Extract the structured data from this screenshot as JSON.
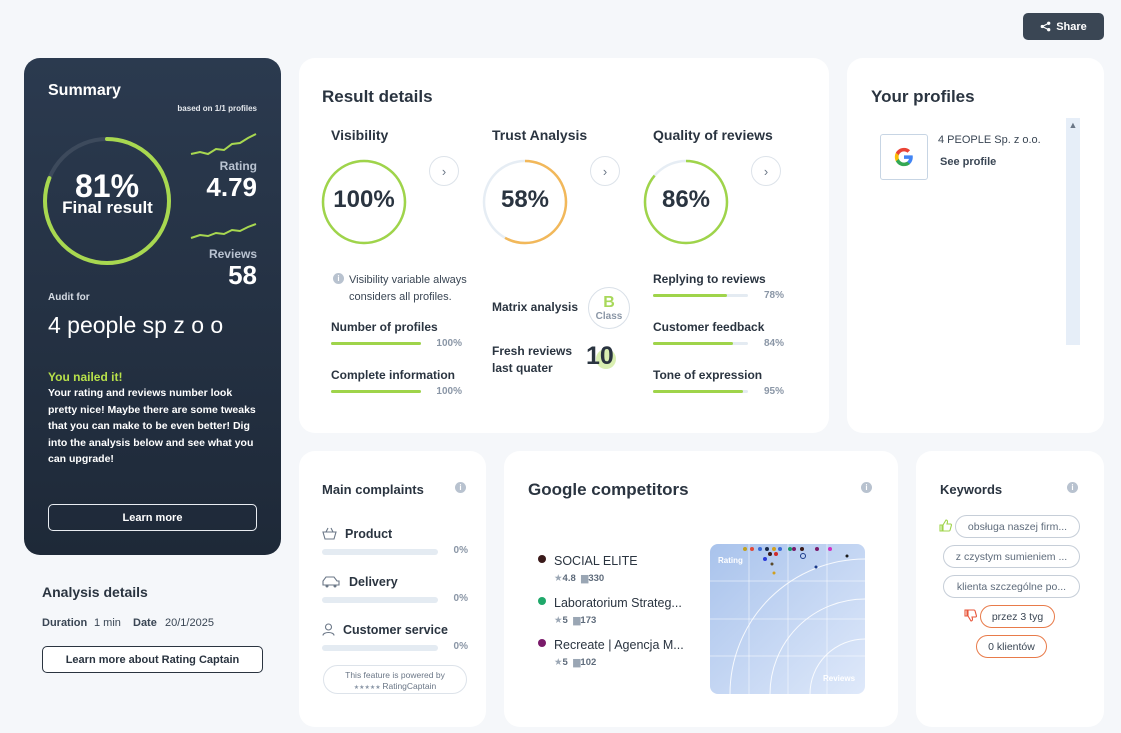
{
  "toolbar": {
    "share_label": "Share"
  },
  "summary": {
    "title": "Summary",
    "based_on": "based on 1/1 profiles",
    "final_percent": "81%",
    "final_label": "Final result",
    "final_value": 0.81,
    "rating_label": "Rating",
    "rating_value": "4.79",
    "reviews_label": "Reviews",
    "reviews_value": "58",
    "audit_for_label": "Audit for",
    "audit_name": "4 people sp z o o",
    "headline": "You nailed it!",
    "message": "Your rating and reviews number look pretty nice! Maybe there are some tweaks that you can make to be even better! Dig into the analysis below and see what you can upgrade!",
    "learn_more_label": "Learn more",
    "accent_color": "#a8d850"
  },
  "analysis": {
    "title": "Analysis details",
    "duration_label": "Duration",
    "duration_value": "1 min",
    "date_label": "Date",
    "date_value": "20/1/2025",
    "learn_more_label": "Learn more about Rating Captain"
  },
  "result_details": {
    "title": "Result details",
    "visibility": {
      "title": "Visibility",
      "percent": "100%",
      "value": 1.0,
      "note": "Visibility variable always considers all profiles.",
      "metrics": [
        {
          "label": "Number of profiles",
          "value": "100%",
          "fraction": 1.0
        },
        {
          "label": "Complete information",
          "value": "100%",
          "fraction": 1.0
        }
      ]
    },
    "trust": {
      "title": "Trust Analysis",
      "percent": "58%",
      "value": 0.58,
      "matrix_label": "Matrix analysis",
      "matrix_class": "B",
      "matrix_class_word": "Class",
      "fresh_label_1": "Fresh reviews",
      "fresh_label_2": "last quater",
      "fresh_value": "10"
    },
    "quality": {
      "title": "Quality of reviews",
      "percent": "86%",
      "value": 0.86,
      "metrics": [
        {
          "label": "Replying to reviews",
          "value": "78%",
          "fraction": 0.78
        },
        {
          "label": "Customer feedback",
          "value": "84%",
          "fraction": 0.84
        },
        {
          "label": "Tone of expression",
          "value": "95%",
          "fraction": 0.95
        }
      ]
    }
  },
  "profiles": {
    "title": "Your profiles",
    "items": [
      {
        "name": "4 PEOPLE Sp. z o.o.",
        "link": "See profile",
        "icon": "google-icon"
      }
    ]
  },
  "complaints": {
    "title": "Main complaints",
    "items": [
      {
        "label": "Product",
        "value": "0%",
        "icon": "basket-icon"
      },
      {
        "label": "Delivery",
        "value": "0%",
        "icon": "car-icon"
      },
      {
        "label": "Customer service",
        "value": "0%",
        "icon": "person-icon"
      }
    ],
    "powered_line1": "This feature is powered by",
    "powered_brand": "RatingCaptain"
  },
  "competitors": {
    "title": "Google competitors",
    "items": [
      {
        "name": "SOCIAL ELITE",
        "rating": "4.8",
        "reviews": "330",
        "color": "#3a1a1a"
      },
      {
        "name": "Laboratorium Strateg...",
        "rating": "5",
        "reviews": "173",
        "color": "#1fa86a"
      },
      {
        "name": "Recreate | Agencja M...",
        "rating": "5",
        "reviews": "102",
        "color": "#7a1a6a"
      }
    ],
    "map_rating_label": "Rating",
    "map_reviews_label": "Reviews"
  },
  "keywords": {
    "title": "Keywords",
    "positive": [
      "obsługa naszej firm...",
      "z czystym sumieniem ...",
      "klienta szczególne po..."
    ],
    "negative": [
      "przez 3 tyg",
      "0 klientów"
    ]
  }
}
